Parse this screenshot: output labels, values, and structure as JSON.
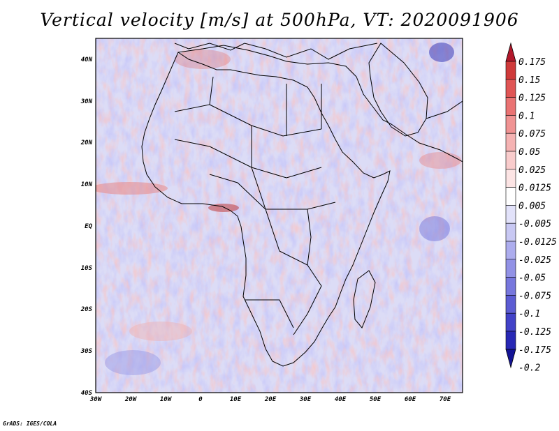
{
  "title": "Vertical velocity [m/s] at 500hPa, VT: 2020091906",
  "credit": "GrADS: IGES/COLA",
  "map": {
    "lon_labels": [
      "30W",
      "20W",
      "10W",
      "0",
      "10E",
      "20E",
      "30E",
      "40E",
      "50E",
      "60E",
      "70E"
    ],
    "lat_labels": [
      "40N",
      "30N",
      "20N",
      "10N",
      "EQ",
      "10S",
      "20S",
      "30S",
      "40S"
    ]
  },
  "colorbar": {
    "labels": [
      "0.175",
      "0.15",
      "0.125",
      "0.1",
      "0.075",
      "0.05",
      "0.025",
      "0.0125",
      "0.005",
      "-0.005",
      "-0.0125",
      "-0.025",
      "-0.05",
      "-0.075",
      "-0.1",
      "-0.125",
      "-0.175",
      "-0.2"
    ],
    "colors": [
      "#b2182b",
      "#cf3a3a",
      "#e05555",
      "#ea7373",
      "#f09393",
      "#f5b3b3",
      "#f9cccc",
      "#fce4e4",
      "#ffffff",
      "#e2e2fa",
      "#c8c8f3",
      "#adadee",
      "#9292e6",
      "#7777dd",
      "#5c5cd3",
      "#4242c8",
      "#2828b5",
      "#141496"
    ]
  }
}
